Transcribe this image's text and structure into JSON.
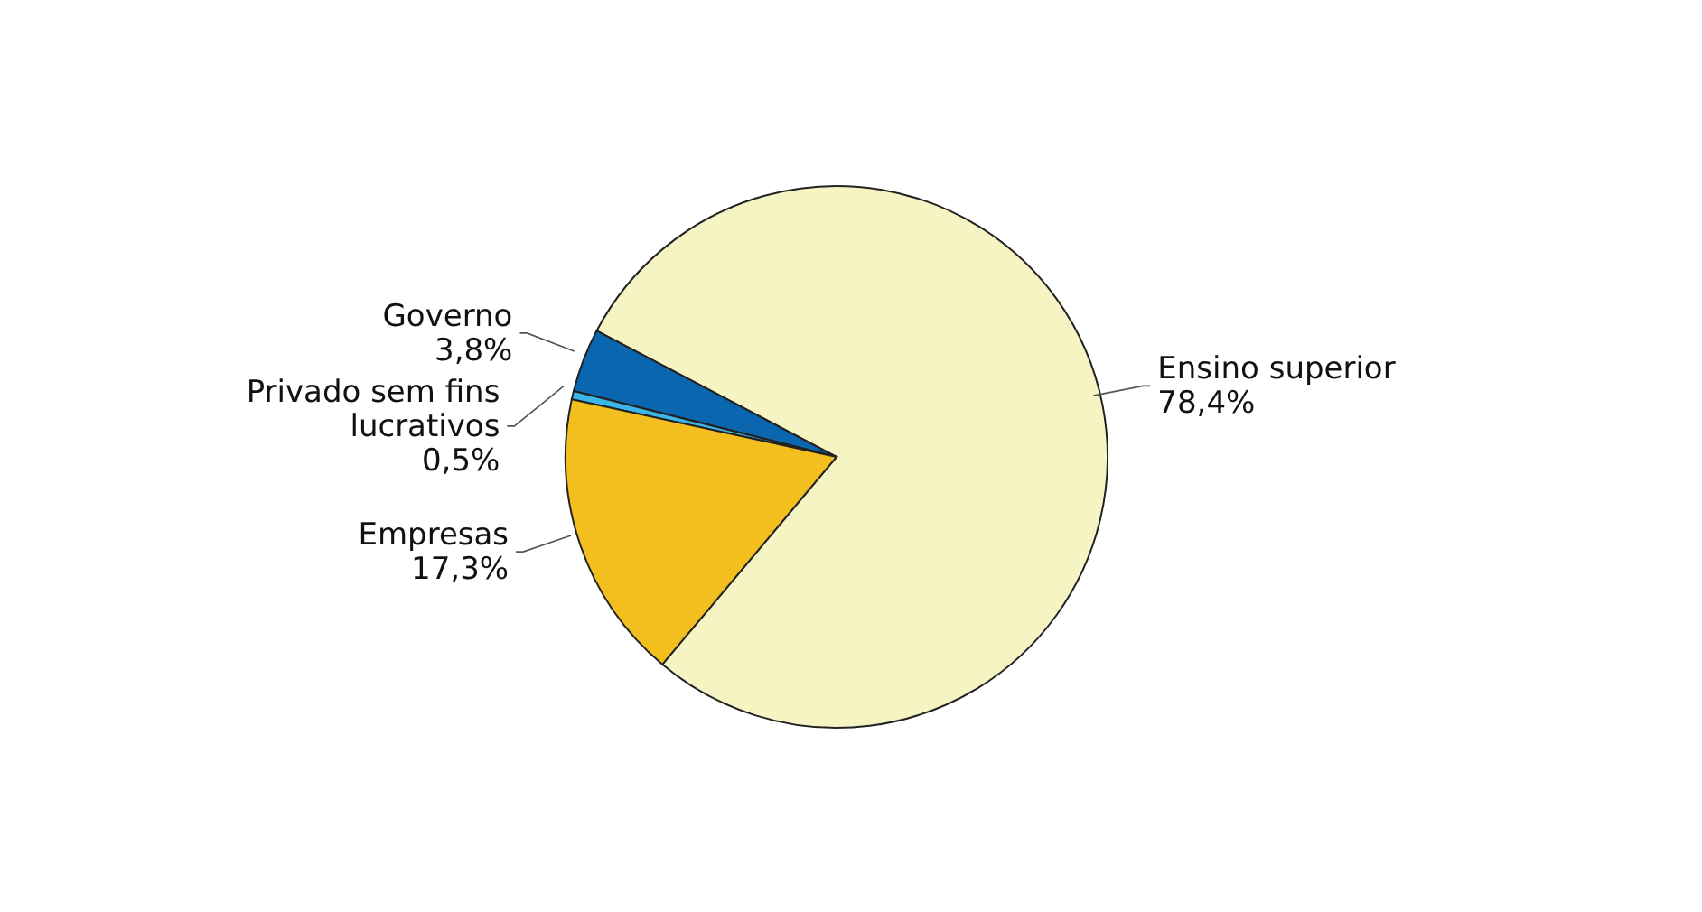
{
  "chart_data": {
    "type": "pie",
    "categories": [
      "Ensino superior",
      "Governo",
      "Privado sem fins lucrativos",
      "Empresas"
    ],
    "values": [
      78.4,
      3.8,
      0.5,
      17.3
    ],
    "colors": [
      "#f7f4c4",
      "#0b66b0",
      "#3ab6e8",
      "#f2bf1f"
    ],
    "value_labels": [
      "78,4%",
      "3,8%",
      "0,5%",
      "17,3%"
    ],
    "legend": false
  }
}
